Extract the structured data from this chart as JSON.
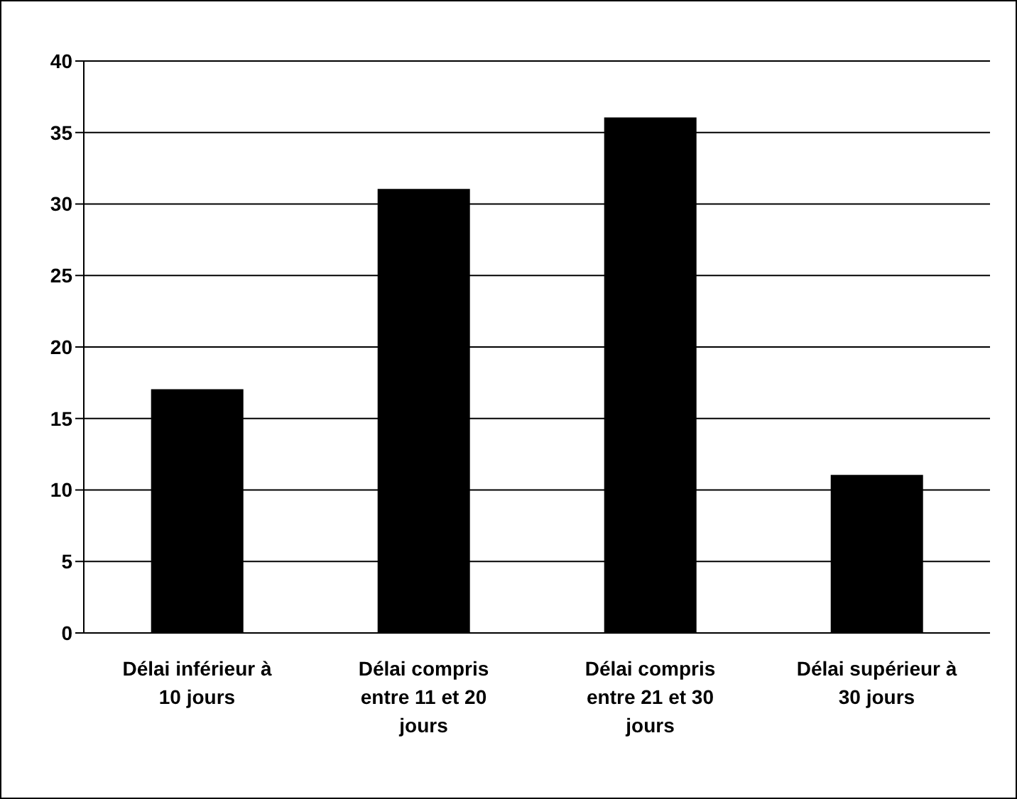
{
  "chart_data": {
    "type": "bar",
    "categories": [
      "Délai inférieur à 10 jours",
      "Délai compris entre 11 et 20 jours",
      "Délai compris entre 21 et 30 jours",
      "Délai supérieur à 30 jours"
    ],
    "values": [
      17,
      31,
      36,
      11
    ],
    "color": "#000000",
    "ylim": [
      0,
      40
    ],
    "yticks": [
      0,
      5,
      10,
      15,
      20,
      25,
      30,
      35,
      40
    ],
    "grid": "y"
  }
}
